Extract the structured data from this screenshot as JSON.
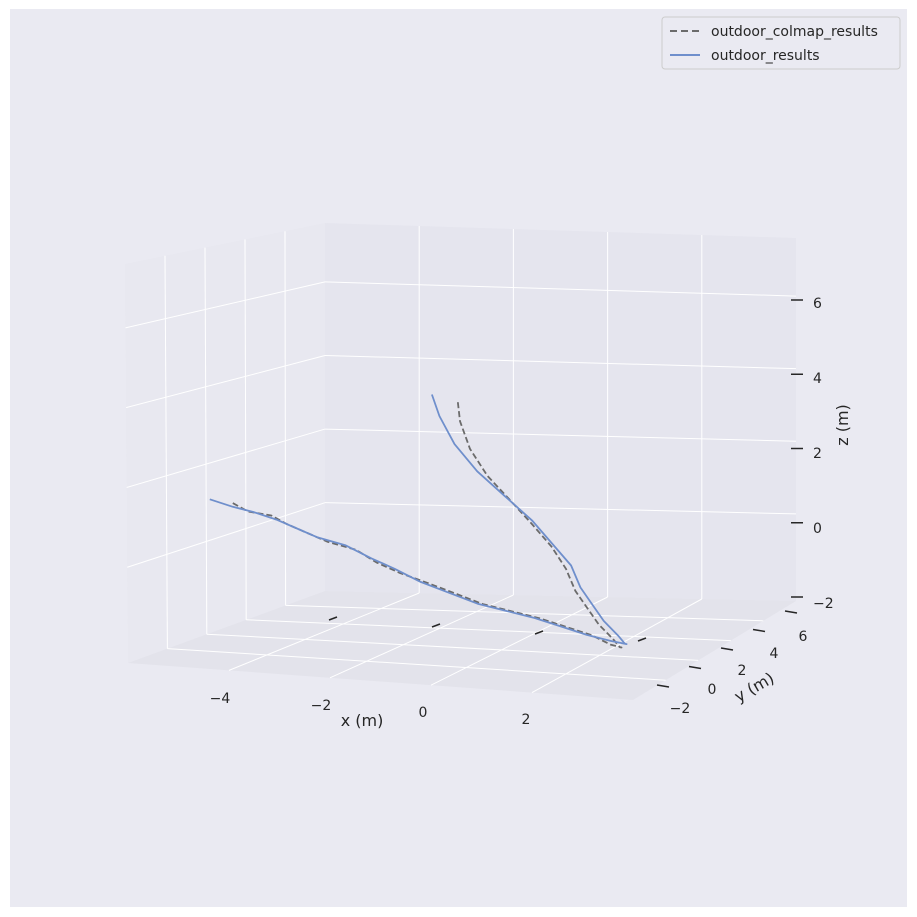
{
  "chart_data": {
    "type": "line",
    "projection": "3d",
    "title": "",
    "xlabel": "x (m)",
    "ylabel": "y (m)",
    "zlabel": "z (m)",
    "x_ticks": [
      "−4",
      "−2",
      "0",
      "2"
    ],
    "y_ticks": [
      "−2",
      "0",
      "2",
      "4",
      "6"
    ],
    "z_ticks": [
      "−2",
      "0",
      "2",
      "4",
      "6"
    ],
    "grid": true,
    "legend_position": "top-right",
    "colors": {
      "figure_bg": "#eaeaf2",
      "pane_back": "#e5e5ee",
      "pane_side": "#e8e8f0",
      "pane_floor": "#e3e3eb",
      "grid": "#ffffff",
      "text": "#262626"
    },
    "series": [
      {
        "name": "outdoor_colmap_results",
        "style": "dashed",
        "color": "#6b6b6b",
        "points": [
          [
            -5.2,
            -1.4,
            0.2
          ],
          [
            -4.9,
            -1.4,
            0.0
          ],
          [
            -4.5,
            -1.5,
            -0.1
          ],
          [
            -4.2,
            -1.5,
            -0.3
          ],
          [
            -3.8,
            -1.5,
            -0.5
          ],
          [
            -3.4,
            -1.5,
            -0.7
          ],
          [
            -2.9,
            -1.6,
            -0.9
          ],
          [
            -2.5,
            -1.6,
            -1.2
          ],
          [
            -2.0,
            -1.5,
            -1.4
          ],
          [
            -1.5,
            -1.5,
            -1.6
          ],
          [
            -0.9,
            -1.4,
            -1.8
          ],
          [
            -0.3,
            -1.3,
            -2.0
          ],
          [
            0.3,
            -1.2,
            -2.1
          ],
          [
            0.9,
            -1.1,
            -2.2
          ],
          [
            1.5,
            -0.9,
            -2.3
          ],
          [
            2.1,
            -0.7,
            -2.4
          ],
          [
            2.6,
            -0.4,
            -2.5
          ],
          [
            3.0,
            0.0,
            -2.4
          ],
          [
            3.2,
            0.5,
            -2.2
          ],
          [
            3.3,
            1.0,
            -1.8
          ],
          [
            3.3,
            1.6,
            -1.2
          ],
          [
            3.4,
            2.3,
            -0.5
          ],
          [
            3.5,
            3.0,
            0.2
          ],
          [
            3.6,
            3.6,
            1.0
          ],
          [
            3.6,
            4.2,
            1.8
          ],
          [
            3.5,
            4.8,
            2.6
          ],
          [
            3.3,
            5.3,
            3.4
          ],
          [
            3.1,
            5.8,
            4.2
          ],
          [
            2.9,
            6.1,
            5.0
          ],
          [
            2.8,
            6.3,
            5.8
          ],
          [
            2.8,
            6.4,
            6.4
          ]
        ]
      },
      {
        "name": "outdoor_results",
        "style": "solid",
        "color": "#6f8fcc",
        "points": [
          [
            -5.6,
            -1.3,
            0.3
          ],
          [
            -5.2,
            -1.4,
            0.1
          ],
          [
            -4.8,
            -1.4,
            0.0
          ],
          [
            -4.4,
            -1.5,
            -0.2
          ],
          [
            -4.0,
            -1.5,
            -0.4
          ],
          [
            -3.6,
            -1.5,
            -0.6
          ],
          [
            -3.1,
            -1.6,
            -0.8
          ],
          [
            -2.6,
            -1.6,
            -1.1
          ],
          [
            -2.1,
            -1.5,
            -1.3
          ],
          [
            -1.6,
            -1.5,
            -1.6
          ],
          [
            -1.0,
            -1.4,
            -1.8
          ],
          [
            -0.4,
            -1.3,
            -2.0
          ],
          [
            0.2,
            -1.2,
            -2.1
          ],
          [
            0.8,
            -1.1,
            -2.2
          ],
          [
            1.4,
            -0.9,
            -2.3
          ],
          [
            2.0,
            -0.7,
            -2.4
          ],
          [
            2.6,
            -0.4,
            -2.4
          ],
          [
            3.1,
            0.0,
            -2.3
          ],
          [
            3.3,
            0.5,
            -2.1
          ],
          [
            3.4,
            1.0,
            -1.7
          ],
          [
            3.4,
            1.6,
            -1.1
          ],
          [
            3.5,
            2.3,
            -0.4
          ],
          [
            3.6,
            3.0,
            0.3
          ],
          [
            3.7,
            3.6,
            1.1
          ],
          [
            3.6,
            4.2,
            1.9
          ],
          [
            3.5,
            4.8,
            2.7
          ],
          [
            3.2,
            5.3,
            3.5
          ],
          [
            2.9,
            5.8,
            4.3
          ],
          [
            2.6,
            6.1,
            5.1
          ],
          [
            2.4,
            6.3,
            5.9
          ],
          [
            2.3,
            6.4,
            6.5
          ]
        ]
      }
    ]
  }
}
